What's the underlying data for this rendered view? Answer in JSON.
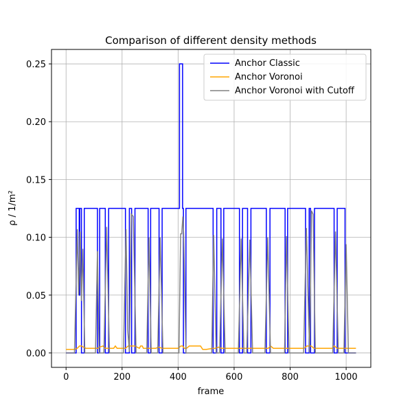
{
  "chart_data": {
    "type": "line",
    "title": "Comparison of different density methods",
    "xlabel": "frame",
    "ylabel": "ρ / 1/m²",
    "xlim": [
      -52,
      1088
    ],
    "ylim": [
      -0.0125,
      0.2625
    ],
    "xticks": [
      0,
      200,
      400,
      600,
      800,
      1000
    ],
    "xtick_labels": [
      "0",
      "200",
      "400",
      "600",
      "800",
      "1000"
    ],
    "yticks": [
      0.0,
      0.05,
      0.1,
      0.15,
      0.2,
      0.25
    ],
    "ytick_labels": [
      "0.00",
      "0.05",
      "0.10",
      "0.15",
      "0.20",
      "0.25"
    ],
    "grid": true,
    "legend_position": "top-right",
    "series": [
      {
        "name": "Anchor Classic",
        "color": "#0000ff",
        "kind": "step",
        "x": [
          0,
          36,
          36,
          47,
          47,
          49,
          49,
          55,
          55,
          65,
          65,
          112,
          112,
          120,
          120,
          140,
          140,
          152,
          152,
          212,
          212,
          226,
          226,
          234,
          234,
          246,
          246,
          293,
          293,
          302,
          302,
          332,
          332,
          343,
          343,
          405,
          405,
          416,
          416,
          419,
          419,
          428,
          428,
          525,
          525,
          538,
          538,
          553,
          553,
          563,
          563,
          619,
          619,
          630,
          630,
          648,
          648,
          660,
          660,
          715,
          715,
          728,
          728,
          782,
          782,
          791,
          791,
          855,
          855,
          868,
          868,
          873,
          873,
          887,
          887,
          957,
          957,
          968,
          968,
          996,
          996,
          1008,
          1008,
          1035
        ],
        "y": [
          0,
          0,
          0.125,
          0.125,
          0.05,
          0.05,
          0.125,
          0.125,
          0,
          0,
          0.125,
          0.125,
          0,
          0,
          0.125,
          0.125,
          0,
          0,
          0.125,
          0.125,
          0,
          0,
          0.125,
          0.125,
          0,
          0,
          0.125,
          0.125,
          0,
          0,
          0.125,
          0.125,
          0,
          0,
          0.125,
          0.125,
          0.25,
          0.25,
          0.125,
          0.125,
          0,
          0,
          0.125,
          0.125,
          0,
          0,
          0.125,
          0.125,
          0,
          0,
          0.125,
          0.125,
          0,
          0,
          0.125,
          0.125,
          0,
          0,
          0.125,
          0.125,
          0,
          0,
          0.125,
          0.125,
          0,
          0,
          0.125,
          0.125,
          0,
          0,
          0.125,
          0.125,
          0,
          0,
          0.125,
          0.125,
          0,
          0,
          0.125,
          0.125,
          0,
          0,
          0,
          0
        ]
      },
      {
        "name": "Anchor Voronoi",
        "color": "#ffa500",
        "kind": "line",
        "x": [
          0,
          30,
          40,
          48,
          55,
          62,
          70,
          100,
          112,
          120,
          132,
          140,
          150,
          170,
          176,
          182,
          200,
          212,
          222,
          235,
          245,
          262,
          266,
          272,
          276,
          290,
          300,
          320,
          332,
          342,
          360,
          400,
          410,
          416,
          422,
          430,
          440,
          460,
          465,
          480,
          488,
          500,
          525,
          533,
          545,
          555,
          565,
          600,
          625,
          632,
          650,
          660,
          700,
          722,
          730,
          740,
          780,
          785,
          800,
          815,
          850,
          860,
          868,
          875,
          885,
          900,
          950,
          958,
          968,
          975,
          995,
          1003,
          1010,
          1020,
          1035
        ],
        "y": [
          0.003,
          0.003,
          0.004,
          0.006,
          0.006,
          0.005,
          0.004,
          0.004,
          0.004,
          0.005,
          0.006,
          0.004,
          0.004,
          0.004,
          0.006,
          0.004,
          0.004,
          0.004,
          0.006,
          0.006,
          0.006,
          0.004,
          0.006,
          0.006,
          0.004,
          0.004,
          0.004,
          0.004,
          0.005,
          0.004,
          0.004,
          0.004,
          0.006,
          0.006,
          0.004,
          0.004,
          0.006,
          0.006,
          0.006,
          0.006,
          0.003,
          0.003,
          0.004,
          0.004,
          0.005,
          0.004,
          0.004,
          0.004,
          0.004,
          0.004,
          0.004,
          0.004,
          0.004,
          0.004,
          0.006,
          0.004,
          0.004,
          0.004,
          0.004,
          0.004,
          0.004,
          0.006,
          0.006,
          0.006,
          0.004,
          0.004,
          0.004,
          0.006,
          0.004,
          0.004,
          0.004,
          0.004,
          0.004,
          0.004,
          0.004
        ]
      },
      {
        "name": "Anchor Voronoi with Cutoff",
        "color": "#808080",
        "kind": "line",
        "x": [
          0,
          30,
          40,
          45,
          50,
          55,
          60,
          67,
          105,
          112,
          118,
          135,
          145,
          155,
          205,
          214,
          220,
          226,
          233,
          240,
          250,
          288,
          296,
          304,
          327,
          336,
          346,
          403,
          409,
          413,
          417,
          420,
          428,
          520,
          527,
          536,
          548,
          558,
          568,
          615,
          625,
          635,
          645,
          656,
          666,
          710,
          720,
          730,
          780,
          787,
          796,
          848,
          858,
          866,
          870,
          876,
          882,
          890,
          952,
          962,
          972,
          992,
          1000,
          1008,
          1035
        ],
        "y": [
          0,
          0,
          0.107,
          0.05,
          0.105,
          0.045,
          0.09,
          0,
          0,
          0.088,
          0,
          0,
          0.109,
          0,
          0,
          0.107,
          0.02,
          0.001,
          0.12,
          0.118,
          0,
          0,
          0.1,
          0,
          0,
          0.1,
          0,
          0,
          0.103,
          0.103,
          0.118,
          0.103,
          0,
          0,
          0.102,
          0,
          0,
          0.099,
          0,
          0,
          0.099,
          0,
          0,
          0.098,
          0,
          0,
          0.1,
          0,
          0,
          0.101,
          0,
          0,
          0.108,
          0.03,
          0,
          0.123,
          0.12,
          0,
          0,
          0.105,
          0,
          0,
          0.094,
          0,
          0
        ]
      }
    ]
  }
}
